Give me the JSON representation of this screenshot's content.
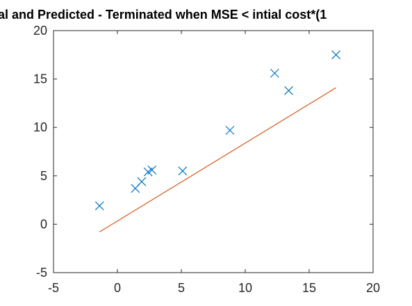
{
  "chart_data": {
    "type": "scatter",
    "title": "al and Predicted - Terminated when MSE < intial cost*(1",
    "xlabel": "",
    "ylabel": "",
    "xlim": [
      -5,
      20
    ],
    "ylim": [
      -5,
      20
    ],
    "xticks": [
      -5,
      0,
      5,
      10,
      15,
      20
    ],
    "yticks": [
      -5,
      0,
      5,
      10,
      15,
      20
    ],
    "x_tick_labels": [
      "-5",
      "0",
      "5",
      "10",
      "15",
      "20"
    ],
    "y_tick_labels": [
      "-5",
      "0",
      "5",
      "10",
      "15",
      "20"
    ],
    "grid": false,
    "series": [
      {
        "kind": "markers",
        "marker": "x",
        "color": "#0072BD",
        "points": [
          {
            "x": -1.4,
            "y": 1.9
          },
          {
            "x": 1.4,
            "y": 3.7
          },
          {
            "x": 1.9,
            "y": 4.4
          },
          {
            "x": 2.4,
            "y": 5.4
          },
          {
            "x": 2.7,
            "y": 5.6
          },
          {
            "x": 5.1,
            "y": 5.5
          },
          {
            "x": 8.8,
            "y": 9.7
          },
          {
            "x": 12.3,
            "y": 15.6
          },
          {
            "x": 13.4,
            "y": 13.8
          },
          {
            "x": 17.1,
            "y": 17.5
          }
        ]
      },
      {
        "kind": "line",
        "color": "#D95319",
        "points": [
          {
            "x": -1.4,
            "y": -0.8
          },
          {
            "x": 17.1,
            "y": 14.1
          }
        ]
      }
    ]
  }
}
